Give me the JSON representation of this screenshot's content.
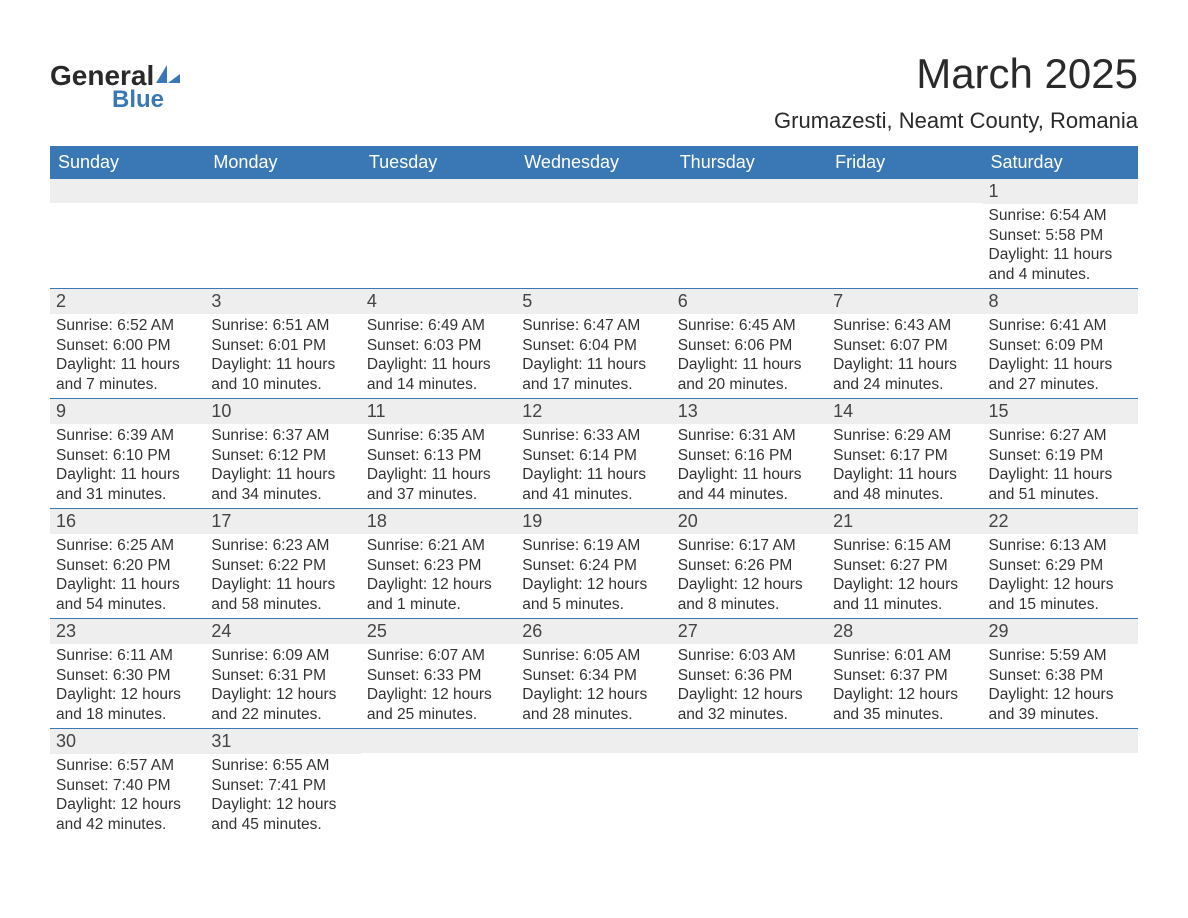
{
  "logo": {
    "text1": "General",
    "text2": "Blue",
    "mark_color": "#3a78b5"
  },
  "title": {
    "month": "March 2025",
    "location": "Grumazesti, Neamt County, Romania"
  },
  "colors": {
    "header_bg": "#3a78b5",
    "header_text": "#ffffff",
    "daynum_bg": "#eeeeee",
    "border": "#3a78b5",
    "body_text": "#333333"
  },
  "typography": {
    "title_fontsize": 42,
    "location_fontsize": 22,
    "header_fontsize": 18,
    "daynum_fontsize": 18,
    "body_fontsize": 15.5
  },
  "day_labels": [
    "Sunday",
    "Monday",
    "Tuesday",
    "Wednesday",
    "Thursday",
    "Friday",
    "Saturday"
  ],
  "weeks": [
    [
      {
        "n": "",
        "sunrise": "",
        "sunset": "",
        "daylight": ""
      },
      {
        "n": "",
        "sunrise": "",
        "sunset": "",
        "daylight": ""
      },
      {
        "n": "",
        "sunrise": "",
        "sunset": "",
        "daylight": ""
      },
      {
        "n": "",
        "sunrise": "",
        "sunset": "",
        "daylight": ""
      },
      {
        "n": "",
        "sunrise": "",
        "sunset": "",
        "daylight": ""
      },
      {
        "n": "",
        "sunrise": "",
        "sunset": "",
        "daylight": ""
      },
      {
        "n": "1",
        "sunrise": "Sunrise: 6:54 AM",
        "sunset": "Sunset: 5:58 PM",
        "daylight": "Daylight: 11 hours and 4 minutes."
      }
    ],
    [
      {
        "n": "2",
        "sunrise": "Sunrise: 6:52 AM",
        "sunset": "Sunset: 6:00 PM",
        "daylight": "Daylight: 11 hours and 7 minutes."
      },
      {
        "n": "3",
        "sunrise": "Sunrise: 6:51 AM",
        "sunset": "Sunset: 6:01 PM",
        "daylight": "Daylight: 11 hours and 10 minutes."
      },
      {
        "n": "4",
        "sunrise": "Sunrise: 6:49 AM",
        "sunset": "Sunset: 6:03 PM",
        "daylight": "Daylight: 11 hours and 14 minutes."
      },
      {
        "n": "5",
        "sunrise": "Sunrise: 6:47 AM",
        "sunset": "Sunset: 6:04 PM",
        "daylight": "Daylight: 11 hours and 17 minutes."
      },
      {
        "n": "6",
        "sunrise": "Sunrise: 6:45 AM",
        "sunset": "Sunset: 6:06 PM",
        "daylight": "Daylight: 11 hours and 20 minutes."
      },
      {
        "n": "7",
        "sunrise": "Sunrise: 6:43 AM",
        "sunset": "Sunset: 6:07 PM",
        "daylight": "Daylight: 11 hours and 24 minutes."
      },
      {
        "n": "8",
        "sunrise": "Sunrise: 6:41 AM",
        "sunset": "Sunset: 6:09 PM",
        "daylight": "Daylight: 11 hours and 27 minutes."
      }
    ],
    [
      {
        "n": "9",
        "sunrise": "Sunrise: 6:39 AM",
        "sunset": "Sunset: 6:10 PM",
        "daylight": "Daylight: 11 hours and 31 minutes."
      },
      {
        "n": "10",
        "sunrise": "Sunrise: 6:37 AM",
        "sunset": "Sunset: 6:12 PM",
        "daylight": "Daylight: 11 hours and 34 minutes."
      },
      {
        "n": "11",
        "sunrise": "Sunrise: 6:35 AM",
        "sunset": "Sunset: 6:13 PM",
        "daylight": "Daylight: 11 hours and 37 minutes."
      },
      {
        "n": "12",
        "sunrise": "Sunrise: 6:33 AM",
        "sunset": "Sunset: 6:14 PM",
        "daylight": "Daylight: 11 hours and 41 minutes."
      },
      {
        "n": "13",
        "sunrise": "Sunrise: 6:31 AM",
        "sunset": "Sunset: 6:16 PM",
        "daylight": "Daylight: 11 hours and 44 minutes."
      },
      {
        "n": "14",
        "sunrise": "Sunrise: 6:29 AM",
        "sunset": "Sunset: 6:17 PM",
        "daylight": "Daylight: 11 hours and 48 minutes."
      },
      {
        "n": "15",
        "sunrise": "Sunrise: 6:27 AM",
        "sunset": "Sunset: 6:19 PM",
        "daylight": "Daylight: 11 hours and 51 minutes."
      }
    ],
    [
      {
        "n": "16",
        "sunrise": "Sunrise: 6:25 AM",
        "sunset": "Sunset: 6:20 PM",
        "daylight": "Daylight: 11 hours and 54 minutes."
      },
      {
        "n": "17",
        "sunrise": "Sunrise: 6:23 AM",
        "sunset": "Sunset: 6:22 PM",
        "daylight": "Daylight: 11 hours and 58 minutes."
      },
      {
        "n": "18",
        "sunrise": "Sunrise: 6:21 AM",
        "sunset": "Sunset: 6:23 PM",
        "daylight": "Daylight: 12 hours and 1 minute."
      },
      {
        "n": "19",
        "sunrise": "Sunrise: 6:19 AM",
        "sunset": "Sunset: 6:24 PM",
        "daylight": "Daylight: 12 hours and 5 minutes."
      },
      {
        "n": "20",
        "sunrise": "Sunrise: 6:17 AM",
        "sunset": "Sunset: 6:26 PM",
        "daylight": "Daylight: 12 hours and 8 minutes."
      },
      {
        "n": "21",
        "sunrise": "Sunrise: 6:15 AM",
        "sunset": "Sunset: 6:27 PM",
        "daylight": "Daylight: 12 hours and 11 minutes."
      },
      {
        "n": "22",
        "sunrise": "Sunrise: 6:13 AM",
        "sunset": "Sunset: 6:29 PM",
        "daylight": "Daylight: 12 hours and 15 minutes."
      }
    ],
    [
      {
        "n": "23",
        "sunrise": "Sunrise: 6:11 AM",
        "sunset": "Sunset: 6:30 PM",
        "daylight": "Daylight: 12 hours and 18 minutes."
      },
      {
        "n": "24",
        "sunrise": "Sunrise: 6:09 AM",
        "sunset": "Sunset: 6:31 PM",
        "daylight": "Daylight: 12 hours and 22 minutes."
      },
      {
        "n": "25",
        "sunrise": "Sunrise: 6:07 AM",
        "sunset": "Sunset: 6:33 PM",
        "daylight": "Daylight: 12 hours and 25 minutes."
      },
      {
        "n": "26",
        "sunrise": "Sunrise: 6:05 AM",
        "sunset": "Sunset: 6:34 PM",
        "daylight": "Daylight: 12 hours and 28 minutes."
      },
      {
        "n": "27",
        "sunrise": "Sunrise: 6:03 AM",
        "sunset": "Sunset: 6:36 PM",
        "daylight": "Daylight: 12 hours and 32 minutes."
      },
      {
        "n": "28",
        "sunrise": "Sunrise: 6:01 AM",
        "sunset": "Sunset: 6:37 PM",
        "daylight": "Daylight: 12 hours and 35 minutes."
      },
      {
        "n": "29",
        "sunrise": "Sunrise: 5:59 AM",
        "sunset": "Sunset: 6:38 PM",
        "daylight": "Daylight: 12 hours and 39 minutes."
      }
    ],
    [
      {
        "n": "30",
        "sunrise": "Sunrise: 6:57 AM",
        "sunset": "Sunset: 7:40 PM",
        "daylight": "Daylight: 12 hours and 42 minutes."
      },
      {
        "n": "31",
        "sunrise": "Sunrise: 6:55 AM",
        "sunset": "Sunset: 7:41 PM",
        "daylight": "Daylight: 12 hours and 45 minutes."
      },
      {
        "n": "",
        "sunrise": "",
        "sunset": "",
        "daylight": ""
      },
      {
        "n": "",
        "sunrise": "",
        "sunset": "",
        "daylight": ""
      },
      {
        "n": "",
        "sunrise": "",
        "sunset": "",
        "daylight": ""
      },
      {
        "n": "",
        "sunrise": "",
        "sunset": "",
        "daylight": ""
      },
      {
        "n": "",
        "sunrise": "",
        "sunset": "",
        "daylight": ""
      }
    ]
  ]
}
